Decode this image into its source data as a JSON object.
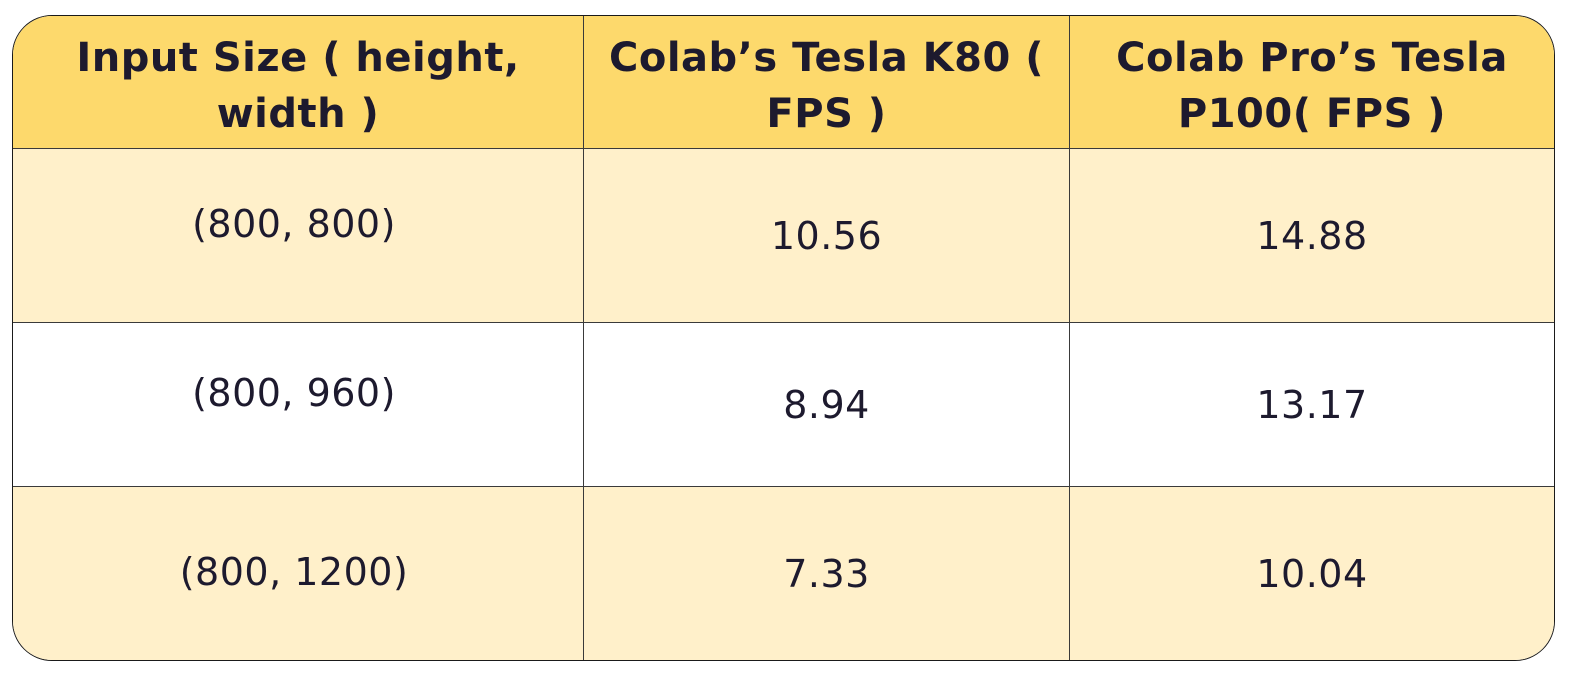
{
  "table": {
    "headers": [
      "Input Size ( height, width )",
      "Colab’s Tesla K80 ( FPS )",
      "Colab Pro’s Tesla P100( FPS )"
    ],
    "rows": [
      [
        "(800, 800)",
        "10.56",
        "14.88"
      ],
      [
        "(800, 960)",
        "8.94",
        "13.17"
      ],
      [
        "(800, 1200)",
        "7.33",
        "10.04"
      ]
    ]
  },
  "colors": {
    "header_bg": "#fdd96c",
    "tint_row_bg": "#fff0ca",
    "text": "#1d1a2e",
    "border": "#1a1a1a"
  }
}
